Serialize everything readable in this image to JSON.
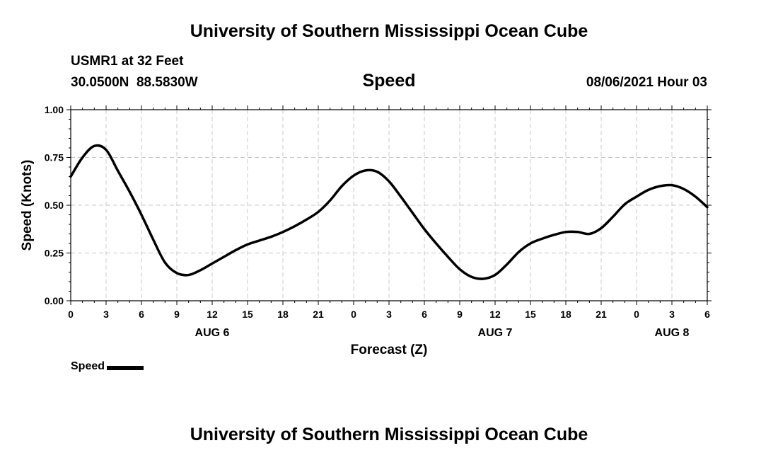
{
  "header": {
    "title": "University of Southern Mississippi Ocean Cube",
    "station": "USMR1 at 32 Feet",
    "coordinates": "30.0500N  88.5830W",
    "variable": "Speed",
    "datetime": "08/06/2021 Hour 03"
  },
  "footer": {
    "title": "University of Southern Mississippi Ocean Cube"
  },
  "legend": {
    "label": "Speed"
  },
  "chart_data": {
    "type": "line",
    "title": "Speed",
    "xlabel": "Forecast (Z)",
    "ylabel": "Speed (Knots)",
    "ylim": [
      0,
      1
    ],
    "yticks": [
      "0.00",
      "0.25",
      "0.50",
      "0.75",
      "1.00"
    ],
    "xlim": [
      0,
      54
    ],
    "xtick_labels": [
      "0",
      "3",
      "6",
      "9",
      "12",
      "15",
      "18",
      "21",
      "0",
      "3",
      "6",
      "9",
      "12",
      "15",
      "18",
      "21",
      "0",
      "3",
      "6"
    ],
    "date_labels": [
      {
        "label": "AUG 6",
        "hour": 12
      },
      {
        "label": "AUG 7",
        "hour": 36
      },
      {
        "label": "AUG 8",
        "hour": 51
      }
    ],
    "grid": true,
    "series": [
      {
        "name": "Speed",
        "color": "#000000",
        "x": [
          0,
          1,
          2,
          3,
          4,
          5,
          6,
          7,
          8,
          9,
          10,
          11,
          12,
          13,
          14,
          15,
          16,
          17,
          18,
          19,
          20,
          21,
          22,
          23,
          24,
          25,
          26,
          27,
          28,
          29,
          30,
          31,
          32,
          33,
          34,
          35,
          36,
          37,
          38,
          39,
          40,
          41,
          42,
          43,
          44,
          45,
          46,
          47,
          48,
          49,
          50,
          51,
          52,
          53,
          54
        ],
        "values": [
          0.65,
          0.75,
          0.81,
          0.79,
          0.68,
          0.57,
          0.45,
          0.32,
          0.2,
          0.145,
          0.135,
          0.16,
          0.195,
          0.23,
          0.265,
          0.295,
          0.315,
          0.335,
          0.36,
          0.39,
          0.425,
          0.465,
          0.525,
          0.6,
          0.655,
          0.682,
          0.675,
          0.625,
          0.545,
          0.46,
          0.375,
          0.3,
          0.23,
          0.165,
          0.125,
          0.115,
          0.135,
          0.19,
          0.255,
          0.3,
          0.325,
          0.345,
          0.36,
          0.36,
          0.35,
          0.38,
          0.44,
          0.505,
          0.545,
          0.58,
          0.6,
          0.605,
          0.585,
          0.545,
          0.49
        ]
      }
    ]
  }
}
